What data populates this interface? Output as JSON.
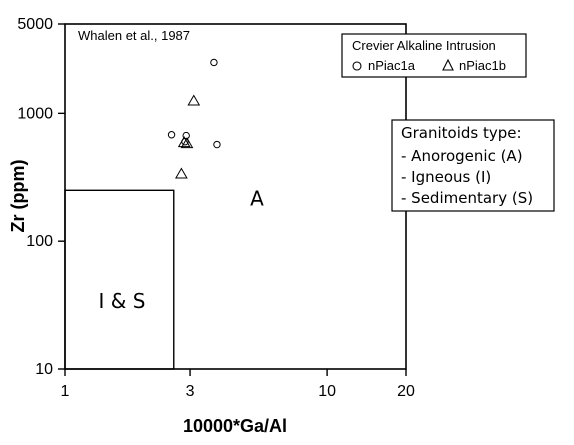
{
  "chart_data": {
    "type": "scatter",
    "x_scale": "log",
    "y_scale": "log",
    "xlim": [
      1,
      20
    ],
    "ylim": [
      10,
      5000
    ],
    "xlabel": "10000*Ga/Al",
    "ylabel": "Zr (ppm)",
    "x_ticks": [
      1,
      3,
      10,
      20
    ],
    "x_tick_labels": [
      "1",
      "3",
      "10",
      "20"
    ],
    "y_ticks": [
      10,
      100,
      1000,
      5000
    ],
    "y_tick_labels": [
      "10",
      "100",
      "1000",
      "5000"
    ],
    "grid": false,
    "annotation": "Whalen et al., 1987",
    "legend": {
      "title": "Crevier Alkaline Intrusion",
      "placement": "top-right",
      "entries": [
        {
          "label": "nPiac1a",
          "marker": "circle"
        },
        {
          "label": "nPiac1b",
          "marker": "triangle"
        }
      ]
    },
    "info_box": {
      "title": "Granitoids type:",
      "lines": [
        "- Anorogenic (A)",
        "- Igneous (I)",
        "- Sedimentary (S)"
      ]
    },
    "regions": [
      {
        "label": "I & S",
        "x_max": 2.6,
        "y_max": 250,
        "label_at": [
          1.65,
          30
        ]
      },
      {
        "label": "A",
        "label_at": [
          5.4,
          190
        ]
      }
    ],
    "series": [
      {
        "name": "nPiac1a",
        "marker": "circle",
        "points": [
          {
            "x": 3.7,
            "y": 2500
          },
          {
            "x": 2.55,
            "y": 680
          },
          {
            "x": 2.9,
            "y": 670
          },
          {
            "x": 2.87,
            "y": 600
          },
          {
            "x": 3.8,
            "y": 570
          }
        ]
      },
      {
        "name": "nPiac1b",
        "marker": "triangle",
        "points": [
          {
            "x": 3.1,
            "y": 1250
          },
          {
            "x": 2.85,
            "y": 590
          },
          {
            "x": 2.92,
            "y": 580
          },
          {
            "x": 2.78,
            "y": 335
          }
        ]
      }
    ]
  }
}
